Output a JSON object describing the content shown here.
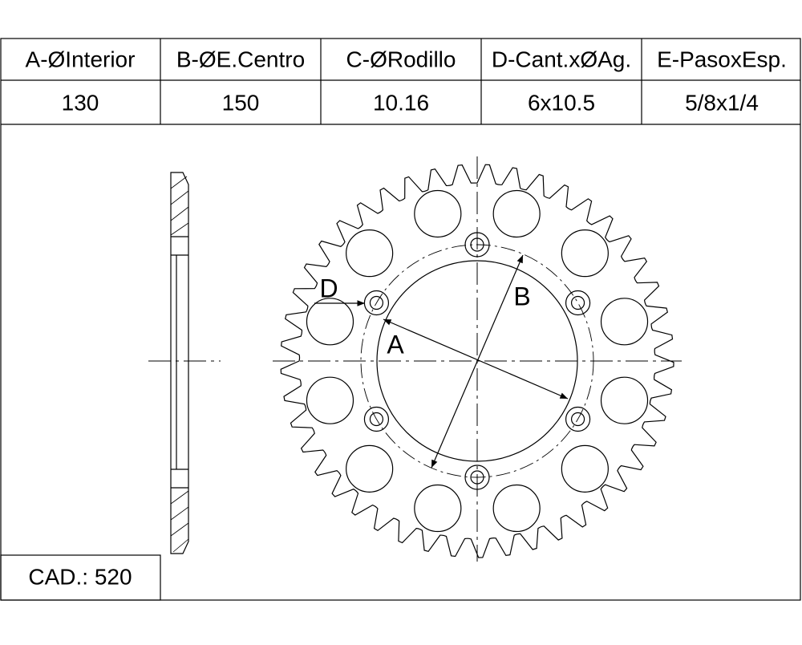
{
  "table": {
    "headers": [
      "A-ØInterior",
      "B-ØE.Centro",
      "C-ØRodillo",
      "D-Cant.xØAg.",
      "E-PasoxEsp."
    ],
    "values": [
      "130",
      "150",
      "10.16",
      "6x10.5",
      "5/8x1/4"
    ]
  },
  "cad": "CAD.: 520",
  "drawing": {
    "labels": {
      "a": "A",
      "b": "B",
      "d": "D"
    }
  }
}
